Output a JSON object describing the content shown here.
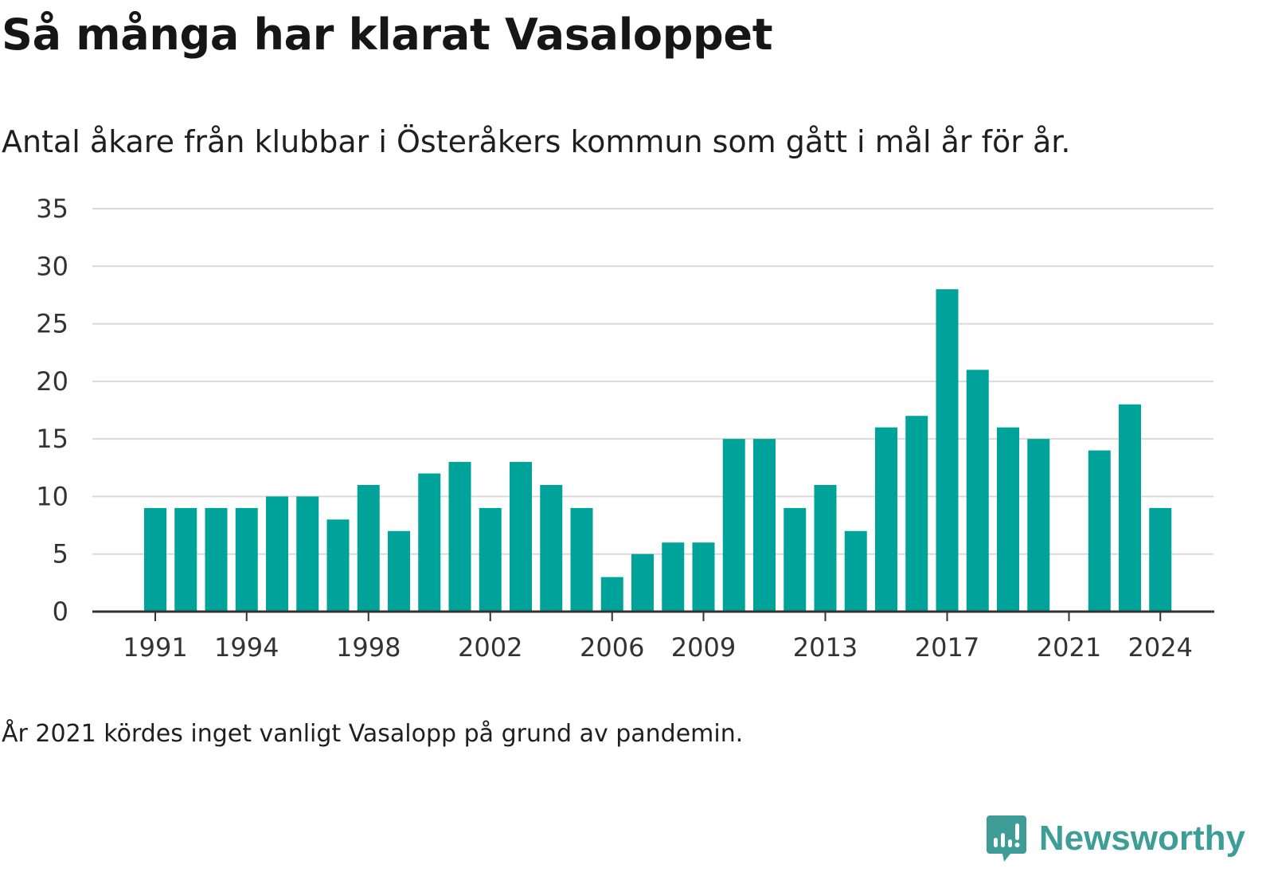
{
  "header": {
    "title": "Så många har klarat Vasaloppet",
    "subtitle": "Antal åkare från klubbar i Österåkers kommun som gått i mål år för år."
  },
  "footer": {
    "note": "År 2021 kördes inget vanligt Vasalopp på grund av pandemin.",
    "brand": "Newsworthy",
    "brand_icon": "chart-bubble-icon"
  },
  "colors": {
    "bar": "#00a39a",
    "grid": "#d9d9d9",
    "axis": "#333333",
    "brand": "#3e9e97"
  },
  "chart_data": {
    "type": "bar",
    "title": "Så många har klarat Vasaloppet",
    "subtitle": "Antal åkare från klubbar i Österåkers kommun som gått i mål år för år.",
    "xlabel": "",
    "ylabel": "",
    "categories": [
      1991,
      1992,
      1993,
      1994,
      1995,
      1996,
      1997,
      1998,
      1999,
      2000,
      2001,
      2002,
      2003,
      2004,
      2005,
      2006,
      2007,
      2008,
      2009,
      2010,
      2011,
      2012,
      2013,
      2014,
      2015,
      2016,
      2017,
      2018,
      2019,
      2020,
      2021,
      2022,
      2023,
      2024
    ],
    "values": [
      9,
      9,
      9,
      9,
      10,
      10,
      8,
      11,
      7,
      12,
      13,
      9,
      13,
      11,
      9,
      3,
      5,
      6,
      6,
      15,
      15,
      9,
      11,
      7,
      16,
      17,
      28,
      21,
      16,
      15,
      0,
      14,
      18,
      9
    ],
    "ylim": [
      0,
      35
    ],
    "yticks": [
      0,
      5,
      10,
      15,
      20,
      25,
      30,
      35
    ],
    "xtick_labels": [
      "1991",
      "1994",
      "1998",
      "2002",
      "2006",
      "2009",
      "2013",
      "2017",
      "2021",
      "2024"
    ],
    "grid": true,
    "legend": "none"
  }
}
